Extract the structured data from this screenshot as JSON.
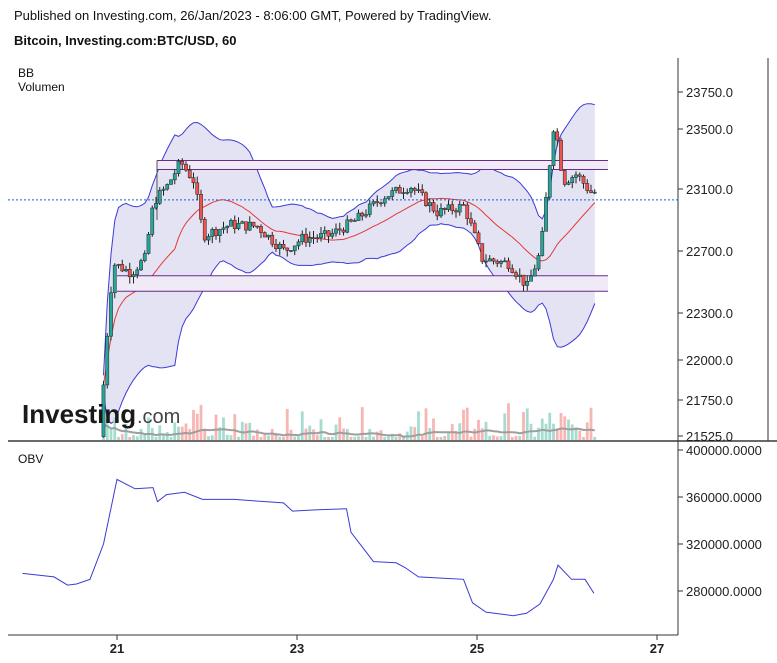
{
  "header": {
    "published": "Published on Investing.com, 26/Jan/2023 - 8:06:00 GMT, Powered by TradingView.",
    "symbol": "Bitcoin, Investing.com:BTC/USD, 60"
  },
  "legend": {
    "bb": "BB",
    "volume": "Volumen",
    "obv": "OBV"
  },
  "logo": {
    "text": "Investing",
    "suffix": ".com"
  },
  "colors": {
    "up": "#26a69a",
    "down": "#ef5350",
    "bb_band": "#3b3bd6",
    "bb_fill": "#d9d9f0",
    "bb_mid": "#e53935",
    "obv": "#3b3bd6",
    "current_price_line": "#1f5fcf",
    "levels": "#6a2c8c"
  },
  "chart_data": [
    {
      "type": "candlestick",
      "title": "",
      "indicators": [
        "BB",
        "Volumen"
      ],
      "x_ticks": [
        "21",
        "23",
        "25",
        "27"
      ],
      "y_ticks": [
        "23750.0",
        "23500.0",
        "23100.0",
        "22700.0",
        "22300.0",
        "22000.0",
        "21750.0",
        "21525.0"
      ],
      "ylim": [
        21525,
        23850
      ],
      "current_price_marker": 23030,
      "horizontal_levels": [
        23290,
        23230,
        22540,
        22440
      ],
      "price_path_approx": [
        {
          "day": 20.85,
          "price": 21520
        },
        {
          "day": 20.95,
          "price": 22300
        },
        {
          "day": 21.0,
          "price": 22620
        },
        {
          "day": 21.2,
          "price": 22560
        },
        {
          "day": 21.35,
          "price": 22650
        },
        {
          "day": 21.45,
          "price": 23020
        },
        {
          "day": 21.6,
          "price": 23120
        },
        {
          "day": 21.75,
          "price": 23280
        },
        {
          "day": 21.9,
          "price": 23150
        },
        {
          "day": 22.0,
          "price": 22800
        },
        {
          "day": 22.3,
          "price": 22870
        },
        {
          "day": 22.6,
          "price": 22860
        },
        {
          "day": 22.9,
          "price": 22700
        },
        {
          "day": 23.1,
          "price": 22780
        },
        {
          "day": 23.4,
          "price": 22800
        },
        {
          "day": 23.7,
          "price": 22900
        },
        {
          "day": 24.0,
          "price": 23050
        },
        {
          "day": 24.3,
          "price": 23120
        },
        {
          "day": 24.6,
          "price": 22950
        },
        {
          "day": 24.9,
          "price": 22990
        },
        {
          "day": 25.1,
          "price": 22650
        },
        {
          "day": 25.4,
          "price": 22620
        },
        {
          "day": 25.6,
          "price": 22470
        },
        {
          "day": 25.75,
          "price": 22700
        },
        {
          "day": 25.9,
          "price": 23560
        },
        {
          "day": 26.0,
          "price": 23150
        },
        {
          "day": 26.15,
          "price": 23200
        },
        {
          "day": 26.3,
          "price": 23080
        }
      ]
    },
    {
      "type": "line",
      "title": "",
      "indicators": [
        "OBV"
      ],
      "x_ticks": [
        "21",
        "23",
        "25",
        "27"
      ],
      "y_ticks": [
        "400000.0000",
        "360000.0000",
        "320000.0000",
        "280000.0000"
      ],
      "ylim": [
        245000,
        400000
      ],
      "series": [
        {
          "name": "OBV",
          "x": [
            19.95,
            20.3,
            20.45,
            20.55,
            20.7,
            20.85,
            21.0,
            21.2,
            21.4,
            21.45,
            21.55,
            21.75,
            21.95,
            22.3,
            22.85,
            22.95,
            23.2,
            23.55,
            23.6,
            23.85,
            24.1,
            24.2,
            24.35,
            24.6,
            24.85,
            24.95,
            25.1,
            25.4,
            25.55,
            25.7,
            25.85,
            25.9,
            26.05,
            26.2,
            26.3
          ],
          "y": [
            295000,
            292000,
            285000,
            286000,
            290000,
            320000,
            375000,
            367000,
            368000,
            356000,
            362000,
            364000,
            358000,
            358000,
            355000,
            348000,
            349000,
            350000,
            330000,
            305000,
            304000,
            300000,
            292000,
            291000,
            290000,
            270000,
            262000,
            259000,
            261000,
            269000,
            290000,
            302000,
            290000,
            290000,
            278000
          ]
        }
      ]
    }
  ]
}
